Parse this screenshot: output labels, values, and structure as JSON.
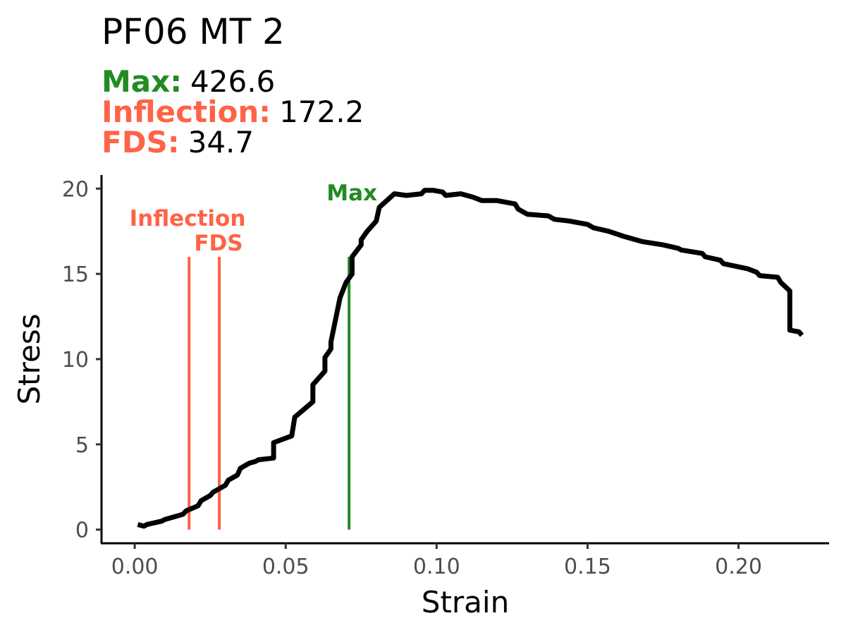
{
  "title": "PF06 MT 2",
  "summary": [
    {
      "label": "Max:",
      "value": "426.6",
      "color": "#228B22"
    },
    {
      "label": "Inflection:",
      "value": "172.2",
      "color": "#FF6347"
    },
    {
      "label": "FDS:",
      "value": "34.7",
      "color": "#FF6347"
    }
  ],
  "chart_data": {
    "type": "line",
    "title": "PF06 MT 2",
    "xlabel": "Strain",
    "ylabel": "Stress",
    "xlim": [
      -0.011,
      0.23
    ],
    "ylim": [
      -0.8,
      20.8
    ],
    "xticks": [
      0.0,
      0.05,
      0.1,
      0.15,
      0.2
    ],
    "xtick_labels": [
      "0.00",
      "0.05",
      "0.10",
      "0.15",
      "0.20"
    ],
    "yticks": [
      0,
      5,
      10,
      15,
      20
    ],
    "ytick_labels": [
      "0",
      "5",
      "10",
      "15",
      "20"
    ],
    "grid": false,
    "line_color": "#000000",
    "series": [
      {
        "x": [
          0.001,
          0.003,
          0.004,
          0.009,
          0.01,
          0.016,
          0.017,
          0.021,
          0.022,
          0.025,
          0.026,
          0.03,
          0.031,
          0.034,
          0.035,
          0.037,
          0.038,
          0.04,
          0.041,
          0.046,
          0.046,
          0.052,
          0.053,
          0.059,
          0.059,
          0.063,
          0.063,
          0.065,
          0.065,
          0.068,
          0.07,
          0.072,
          0.072,
          0.075,
          0.075,
          0.077,
          0.08,
          0.081,
          0.086,
          0.09,
          0.095,
          0.096,
          0.099,
          0.102,
          0.103,
          0.108,
          0.112,
          0.115,
          0.12,
          0.126,
          0.127,
          0.13,
          0.137,
          0.139,
          0.144,
          0.15,
          0.152,
          0.157,
          0.162,
          0.168,
          0.175,
          0.18,
          0.181,
          0.188,
          0.189,
          0.194,
          0.195,
          0.203,
          0.206,
          0.207,
          0.213,
          0.214,
          0.217,
          0.217,
          0.22,
          0.221
        ],
        "y": [
          0.3,
          0.2,
          0.3,
          0.5,
          0.6,
          0.9,
          1.1,
          1.4,
          1.7,
          2.0,
          2.2,
          2.6,
          2.9,
          3.2,
          3.6,
          3.8,
          3.9,
          4.0,
          4.1,
          4.2,
          5.1,
          5.5,
          6.6,
          7.5,
          8.5,
          9.3,
          10.1,
          10.6,
          11.0,
          13.6,
          14.5,
          15.0,
          16.0,
          16.7,
          17.0,
          17.5,
          18.1,
          18.9,
          19.7,
          19.6,
          19.7,
          19.9,
          19.9,
          19.8,
          19.6,
          19.7,
          19.5,
          19.3,
          19.3,
          19.1,
          18.8,
          18.5,
          18.4,
          18.2,
          18.1,
          17.9,
          17.7,
          17.5,
          17.2,
          16.9,
          16.7,
          16.5,
          16.4,
          16.2,
          16.0,
          15.8,
          15.6,
          15.3,
          15.1,
          14.9,
          14.8,
          14.5,
          14.0,
          11.7,
          11.6,
          11.4
        ]
      }
    ],
    "markers": [
      {
        "name": "Inflection",
        "x": 0.018,
        "y_top": 16.0,
        "color": "#FF6347"
      },
      {
        "name": "FDS",
        "x": 0.028,
        "y_top": 16.0,
        "color": "#FF6347"
      },
      {
        "name": "Max",
        "x": 0.071,
        "y_top": 16.0,
        "color": "#228B22"
      }
    ]
  }
}
